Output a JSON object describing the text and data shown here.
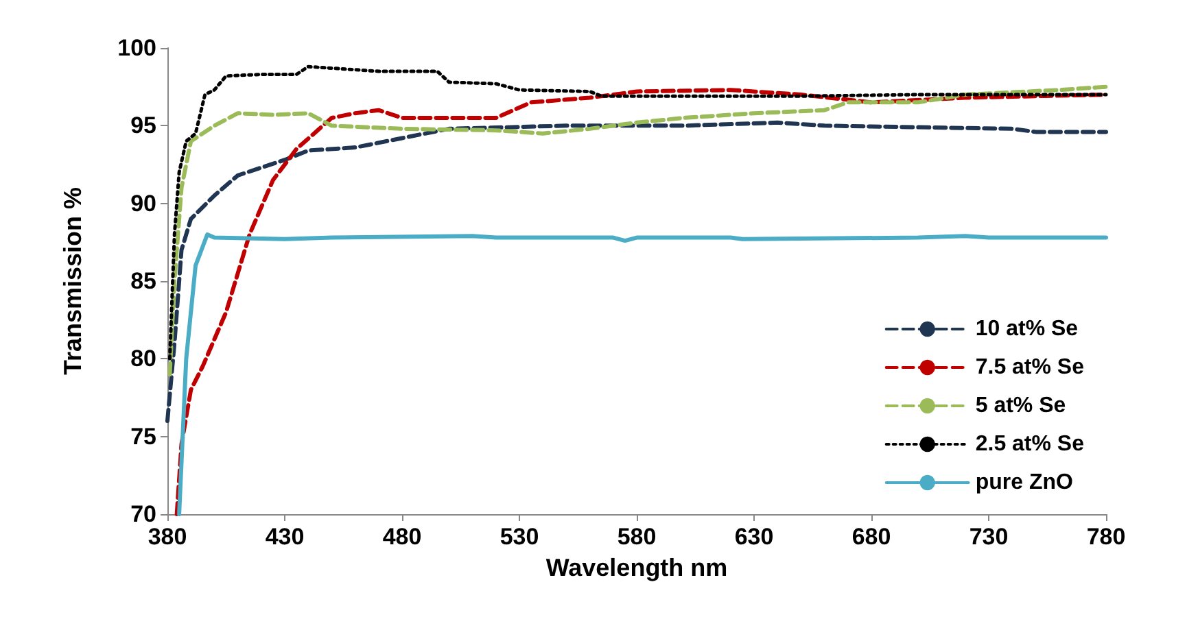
{
  "chart_data": {
    "type": "line",
    "xlabel": "Wavelength nm",
    "ylabel": "Transmission %",
    "xlim": [
      380,
      780
    ],
    "xticks": [
      380,
      430,
      480,
      530,
      580,
      630,
      680,
      730,
      780
    ],
    "ylim": [
      70,
      100
    ],
    "yticks": [
      70,
      75,
      80,
      85,
      90,
      95,
      100
    ],
    "grid": false,
    "legend": "bottom right",
    "marker": "none",
    "series": [
      {
        "name": "10 at% Se",
        "color": "#1f3552",
        "line_style": "dashed",
        "x": [
          380,
          383,
          386,
          390,
          400,
          410,
          430,
          440,
          460,
          480,
          500,
          550,
          600,
          640,
          660,
          700,
          740,
          750,
          780
        ],
        "values": [
          76,
          81,
          87,
          89,
          90.5,
          91.8,
          92.8,
          93.4,
          93.6,
          94.2,
          94.8,
          95,
          95,
          95.2,
          95,
          94.9,
          94.8,
          94.6,
          94.6
        ]
      },
      {
        "name": "7.5 at% Se",
        "color": "#c00000",
        "line_style": "dashed",
        "x": [
          384,
          386,
          390,
          395,
          405,
          415,
          425,
          435,
          450,
          460,
          470,
          480,
          500,
          520,
          535,
          560,
          580,
          620,
          650,
          680,
          720,
          780
        ],
        "values": [
          70,
          74.5,
          78,
          79.5,
          83,
          88,
          91.5,
          93.5,
          95.5,
          95.8,
          96,
          95.5,
          95.5,
          95.5,
          96.5,
          96.8,
          97.2,
          97.3,
          97,
          96.5,
          96.8,
          97
        ]
      },
      {
        "name": "5 at% Se",
        "color": "#9bbb59",
        "line_style": "dashed",
        "x": [
          381,
          383,
          386,
          390,
          400,
          410,
          425,
          440,
          450,
          480,
          520,
          540,
          560,
          580,
          600,
          630,
          660,
          670,
          700,
          720,
          760,
          780
        ],
        "values": [
          79,
          85,
          91,
          94,
          95,
          95.8,
          95.7,
          95.8,
          95,
          94.8,
          94.7,
          94.5,
          94.8,
          95.2,
          95.5,
          95.8,
          96,
          96.5,
          96.5,
          97,
          97.3,
          97.5
        ]
      },
      {
        "name": "2.5 at% Se",
        "color": "#000000",
        "line_style": "dotted",
        "x": [
          381,
          383,
          385,
          388,
          392,
          396,
          400,
          405,
          420,
          435,
          440,
          450,
          470,
          495,
          500,
          520,
          530,
          560,
          565,
          600,
          650,
          700,
          780
        ],
        "values": [
          80,
          88,
          92,
          94,
          94.5,
          97,
          97.3,
          98.2,
          98.3,
          98.3,
          98.8,
          98.7,
          98.5,
          98.5,
          97.8,
          97.7,
          97.3,
          97.2,
          96.9,
          96.9,
          96.9,
          97,
          97
        ]
      },
      {
        "name": "pure ZnO",
        "color": "#4bacc6",
        "line_style": "solid",
        "x": [
          385,
          388,
          392,
          397,
          400,
          430,
          450,
          510,
          520,
          570,
          575,
          580,
          620,
          625,
          700,
          720,
          730,
          780
        ],
        "values": [
          70,
          80,
          86,
          88,
          87.8,
          87.7,
          87.8,
          87.9,
          87.8,
          87.8,
          87.6,
          87.8,
          87.8,
          87.7,
          87.8,
          87.9,
          87.8,
          87.8
        ]
      }
    ]
  }
}
